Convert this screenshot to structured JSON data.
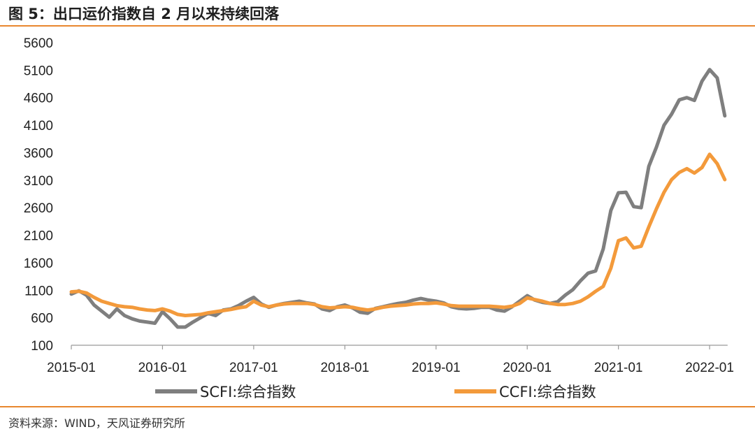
{
  "figure": {
    "title": "图 5：出口运价指数自 2 月以来持续回落",
    "source": "资料来源：WIND，天风证券研究所"
  },
  "colors": {
    "accent": "#e8872e",
    "scfi": "#7f7f7f",
    "ccfi": "#f39a3b"
  },
  "chart_data": {
    "type": "line",
    "title": "",
    "xlabel": "",
    "ylabel": "",
    "ylim": [
      100,
      5600
    ],
    "yticks": [
      "5600",
      "5100",
      "4600",
      "4100",
      "3600",
      "3100",
      "2600",
      "2100",
      "1600",
      "1100",
      "600",
      "100"
    ],
    "xticks": [
      "2015-01",
      "2016-01",
      "2017-01",
      "2018-01",
      "2019-01",
      "2020-01",
      "2021-01",
      "2022-01"
    ],
    "xlim": [
      "2015-01",
      "2022-03"
    ],
    "grid": false,
    "legend_position": "bottom",
    "series": [
      {
        "name": "SCFI:综合指数",
        "color": "#7f7f7f",
        "points": [
          [
            "2015-01",
            1030
          ],
          [
            "2015-02",
            1090
          ],
          [
            "2015-03",
            1010
          ],
          [
            "2015-04",
            830
          ],
          [
            "2015-05",
            720
          ],
          [
            "2015-06",
            610
          ],
          [
            "2015-07",
            760
          ],
          [
            "2015-08",
            640
          ],
          [
            "2015-09",
            580
          ],
          [
            "2015-10",
            540
          ],
          [
            "2015-11",
            520
          ],
          [
            "2015-12",
            500
          ],
          [
            "2016-01",
            710
          ],
          [
            "2016-02",
            580
          ],
          [
            "2016-03",
            430
          ],
          [
            "2016-04",
            430
          ],
          [
            "2016-05",
            520
          ],
          [
            "2016-06",
            600
          ],
          [
            "2016-07",
            680
          ],
          [
            "2016-08",
            640
          ],
          [
            "2016-09",
            740
          ],
          [
            "2016-10",
            760
          ],
          [
            "2016-11",
            820
          ],
          [
            "2016-12",
            900
          ],
          [
            "2017-01",
            970
          ],
          [
            "2017-02",
            850
          ],
          [
            "2017-03",
            790
          ],
          [
            "2017-04",
            830
          ],
          [
            "2017-05",
            860
          ],
          [
            "2017-06",
            880
          ],
          [
            "2017-07",
            900
          ],
          [
            "2017-08",
            870
          ],
          [
            "2017-09",
            850
          ],
          [
            "2017-10",
            760
          ],
          [
            "2017-11",
            730
          ],
          [
            "2017-12",
            800
          ],
          [
            "2018-01",
            830
          ],
          [
            "2018-02",
            780
          ],
          [
            "2018-03",
            700
          ],
          [
            "2018-04",
            680
          ],
          [
            "2018-05",
            770
          ],
          [
            "2018-06",
            800
          ],
          [
            "2018-07",
            830
          ],
          [
            "2018-08",
            860
          ],
          [
            "2018-09",
            880
          ],
          [
            "2018-10",
            920
          ],
          [
            "2018-11",
            950
          ],
          [
            "2018-12",
            920
          ],
          [
            "2019-01",
            900
          ],
          [
            "2019-02",
            870
          ],
          [
            "2019-03",
            800
          ],
          [
            "2019-04",
            770
          ],
          [
            "2019-05",
            760
          ],
          [
            "2019-06",
            770
          ],
          [
            "2019-07",
            790
          ],
          [
            "2019-08",
            790
          ],
          [
            "2019-09",
            740
          ],
          [
            "2019-10",
            720
          ],
          [
            "2019-11",
            800
          ],
          [
            "2019-12",
            900
          ],
          [
            "2020-01",
            1000
          ],
          [
            "2020-02",
            920
          ],
          [
            "2020-03",
            880
          ],
          [
            "2020-04",
            860
          ],
          [
            "2020-05",
            890
          ],
          [
            "2020-06",
            1010
          ],
          [
            "2020-07",
            1110
          ],
          [
            "2020-08",
            1270
          ],
          [
            "2020-09",
            1410
          ],
          [
            "2020-10",
            1450
          ],
          [
            "2020-11",
            1850
          ],
          [
            "2020-12",
            2550
          ],
          [
            "2021-01",
            2870
          ],
          [
            "2021-02",
            2880
          ],
          [
            "2021-03",
            2620
          ],
          [
            "2021-04",
            2600
          ],
          [
            "2021-05",
            3350
          ],
          [
            "2021-06",
            3700
          ],
          [
            "2021-07",
            4100
          ],
          [
            "2021-08",
            4300
          ],
          [
            "2021-09",
            4560
          ],
          [
            "2021-10",
            4600
          ],
          [
            "2021-11",
            4550
          ],
          [
            "2021-12",
            4900
          ],
          [
            "2022-01",
            5110
          ],
          [
            "2022-02",
            4960
          ],
          [
            "2022-03",
            4270
          ]
        ]
      },
      {
        "name": "CCFI:综合指数",
        "color": "#f39a3b",
        "points": [
          [
            "2015-01",
            1070
          ],
          [
            "2015-02",
            1080
          ],
          [
            "2015-03",
            1050
          ],
          [
            "2015-04",
            970
          ],
          [
            "2015-05",
            900
          ],
          [
            "2015-06",
            860
          ],
          [
            "2015-07",
            820
          ],
          [
            "2015-08",
            800
          ],
          [
            "2015-09",
            790
          ],
          [
            "2015-10",
            760
          ],
          [
            "2015-11",
            740
          ],
          [
            "2015-12",
            730
          ],
          [
            "2016-01",
            760
          ],
          [
            "2016-02",
            720
          ],
          [
            "2016-03",
            660
          ],
          [
            "2016-04",
            640
          ],
          [
            "2016-05",
            650
          ],
          [
            "2016-06",
            660
          ],
          [
            "2016-07",
            690
          ],
          [
            "2016-08",
            710
          ],
          [
            "2016-09",
            730
          ],
          [
            "2016-10",
            750
          ],
          [
            "2016-11",
            780
          ],
          [
            "2016-12",
            800
          ],
          [
            "2017-01",
            900
          ],
          [
            "2017-02",
            830
          ],
          [
            "2017-03",
            800
          ],
          [
            "2017-04",
            830
          ],
          [
            "2017-05",
            850
          ],
          [
            "2017-06",
            860
          ],
          [
            "2017-07",
            860
          ],
          [
            "2017-08",
            860
          ],
          [
            "2017-09",
            840
          ],
          [
            "2017-10",
            800
          ],
          [
            "2017-11",
            780
          ],
          [
            "2017-12",
            790
          ],
          [
            "2018-01",
            800
          ],
          [
            "2018-02",
            790
          ],
          [
            "2018-03",
            760
          ],
          [
            "2018-04",
            740
          ],
          [
            "2018-05",
            760
          ],
          [
            "2018-06",
            790
          ],
          [
            "2018-07",
            810
          ],
          [
            "2018-08",
            820
          ],
          [
            "2018-09",
            830
          ],
          [
            "2018-10",
            850
          ],
          [
            "2018-11",
            860
          ],
          [
            "2018-12",
            860
          ],
          [
            "2019-01",
            870
          ],
          [
            "2019-02",
            850
          ],
          [
            "2019-03",
            820
          ],
          [
            "2019-04",
            810
          ],
          [
            "2019-05",
            810
          ],
          [
            "2019-06",
            810
          ],
          [
            "2019-07",
            810
          ],
          [
            "2019-08",
            810
          ],
          [
            "2019-09",
            800
          ],
          [
            "2019-10",
            790
          ],
          [
            "2019-11",
            810
          ],
          [
            "2019-12",
            860
          ],
          [
            "2020-01",
            960
          ],
          [
            "2020-02",
            930
          ],
          [
            "2020-03",
            900
          ],
          [
            "2020-04",
            860
          ],
          [
            "2020-05",
            840
          ],
          [
            "2020-06",
            840
          ],
          [
            "2020-07",
            860
          ],
          [
            "2020-08",
            900
          ],
          [
            "2020-09",
            980
          ],
          [
            "2020-10",
            1080
          ],
          [
            "2020-11",
            1170
          ],
          [
            "2020-12",
            1500
          ],
          [
            "2021-01",
            2000
          ],
          [
            "2021-02",
            2050
          ],
          [
            "2021-03",
            1870
          ],
          [
            "2021-04",
            1900
          ],
          [
            "2021-05",
            2250
          ],
          [
            "2021-06",
            2580
          ],
          [
            "2021-07",
            2880
          ],
          [
            "2021-08",
            3110
          ],
          [
            "2021-09",
            3240
          ],
          [
            "2021-10",
            3310
          ],
          [
            "2021-11",
            3230
          ],
          [
            "2021-12",
            3330
          ],
          [
            "2022-01",
            3570
          ],
          [
            "2022-02",
            3400
          ],
          [
            "2022-03",
            3110
          ]
        ]
      }
    ]
  }
}
